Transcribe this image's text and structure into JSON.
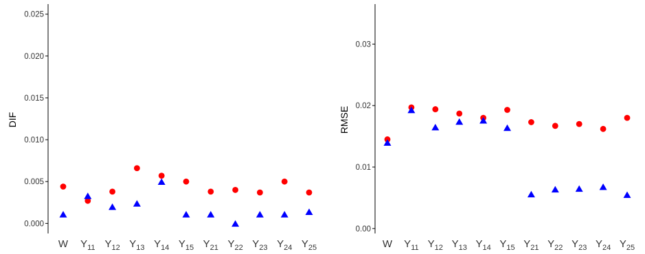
{
  "colors": {
    "red_series": "#ff0000",
    "blue_series": "#0000ff",
    "axis": "#000000",
    "tick_label": "#333333"
  },
  "chart_data": [
    {
      "type": "scatter",
      "ylabel": "DIF",
      "ylim": [
        -0.0012,
        0.0262
      ],
      "yticks": [
        0.0,
        0.005,
        0.01,
        0.015,
        0.02,
        0.025
      ],
      "ytick_labels": [
        "0.000",
        "0.005",
        "0.010",
        "0.015",
        "0.020",
        "0.025"
      ],
      "categories": [
        {
          "base": "W",
          "sub": ""
        },
        {
          "base": "Y",
          "sub": "11"
        },
        {
          "base": "Y",
          "sub": "12"
        },
        {
          "base": "Y",
          "sub": "13"
        },
        {
          "base": "Y",
          "sub": "14"
        },
        {
          "base": "Y",
          "sub": "15"
        },
        {
          "base": "Y",
          "sub": "21"
        },
        {
          "base": "Y",
          "sub": "22"
        },
        {
          "base": "Y",
          "sub": "23"
        },
        {
          "base": "Y",
          "sub": "24"
        },
        {
          "base": "Y",
          "sub": "25"
        }
      ],
      "series": [
        {
          "marker": "circle",
          "color": "#ff0000",
          "values": [
            0.0044,
            0.0027,
            0.0038,
            0.0066,
            0.0057,
            0.005,
            0.0038,
            0.004,
            0.0037,
            0.005,
            0.0037
          ]
        },
        {
          "marker": "triangle",
          "color": "#0000ff",
          "values": [
            0.0011,
            0.0033,
            0.002,
            0.0024,
            0.005,
            0.0011,
            0.0011,
            0.0,
            0.0011,
            0.0011,
            0.0014
          ]
        }
      ],
      "grid": false,
      "legend": "none"
    },
    {
      "type": "scatter",
      "ylabel": "RMSE",
      "ylim": [
        -0.0008,
        0.0365
      ],
      "yticks": [
        0.0,
        0.01,
        0.02,
        0.03
      ],
      "ytick_labels": [
        "0.00",
        "0.01",
        "0.02",
        "0.03"
      ],
      "categories": [
        {
          "base": "W",
          "sub": ""
        },
        {
          "base": "Y",
          "sub": "11"
        },
        {
          "base": "Y",
          "sub": "12"
        },
        {
          "base": "Y",
          "sub": "13"
        },
        {
          "base": "Y",
          "sub": "14"
        },
        {
          "base": "Y",
          "sub": "15"
        },
        {
          "base": "Y",
          "sub": "21"
        },
        {
          "base": "Y",
          "sub": "22"
        },
        {
          "base": "Y",
          "sub": "23"
        },
        {
          "base": "Y",
          "sub": "24"
        },
        {
          "base": "Y",
          "sub": "25"
        }
      ],
      "series": [
        {
          "marker": "circle",
          "color": "#ff0000",
          "values": [
            0.0145,
            0.0197,
            0.0194,
            0.0187,
            0.018,
            0.0193,
            0.0173,
            0.0167,
            0.017,
            0.0162,
            0.018
          ]
        },
        {
          "marker": "triangle",
          "color": "#0000ff",
          "values": [
            0.014,
            0.0193,
            0.0165,
            0.0174,
            0.0176,
            0.0164,
            0.0056,
            0.0064,
            0.0065,
            0.0068,
            0.0055
          ]
        }
      ],
      "grid": false,
      "legend": "none"
    }
  ]
}
